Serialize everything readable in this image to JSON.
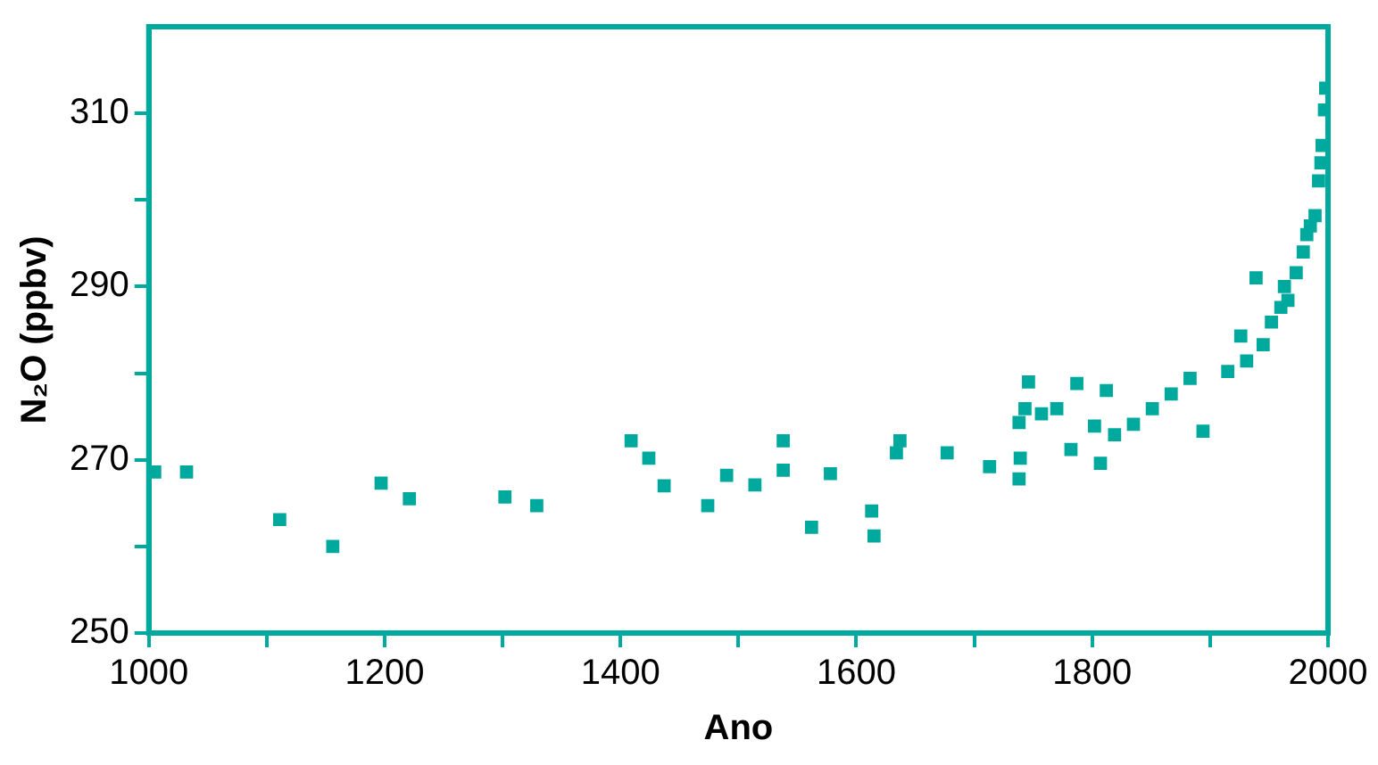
{
  "chart_data": {
    "type": "scatter",
    "xlabel": "Ano",
    "ylabel": "N₂O (ppbv)",
    "marker": "square",
    "grid": false,
    "legend": false,
    "xlim": [
      1000,
      2000
    ],
    "ylim": [
      250,
      320
    ],
    "xticks": [
      1000,
      {
        "value": 1100,
        "label": null
      },
      1200,
      {
        "value": 1300,
        "label": null
      },
      1400,
      {
        "value": 1500,
        "label": null
      },
      1600,
      {
        "value": 1700,
        "label": null
      },
      1800,
      {
        "value": 1900,
        "label": null
      },
      2000
    ],
    "yticks": [
      250,
      {
        "value": 260,
        "label": null
      },
      270,
      {
        "value": 280,
        "label": null
      },
      290,
      {
        "value": 300,
        "label": null
      },
      310
    ],
    "series": [
      {
        "color": "#00a99d",
        "x": [
          1005,
          1032,
          1111,
          1156,
          1197,
          1221,
          1302,
          1329,
          1409,
          1424,
          1437,
          1474,
          1490,
          1514,
          1538,
          1538,
          1562,
          1578,
          1613,
          1615,
          1634,
          1637,
          1677,
          1713,
          1738,
          1739,
          1738,
          1743,
          1746,
          1757,
          1770,
          1782,
          1787,
          1802,
          1807,
          1812,
          1819,
          1835,
          1851,
          1867,
          1883,
          1894,
          1915,
          1926,
          1931,
          1939,
          1945,
          1952,
          1960,
          1963,
          1966,
          1973,
          1979,
          1982,
          1985,
          1989,
          1992,
          1994,
          1995,
          1997,
          1998
        ],
        "values": [
          268.6,
          268.6,
          263.1,
          260,
          267.3,
          265.5,
          265.7,
          264.7,
          272.2,
          270.2,
          267,
          264.7,
          268.2,
          267.1,
          268.8,
          272.2,
          262.2,
          268.4,
          264.1,
          261.2,
          270.8,
          272.2,
          270.8,
          269.2,
          267.8,
          270.2,
          274.3,
          275.9,
          279,
          275.3,
          275.9,
          271.2,
          278.8,
          273.9,
          269.6,
          278,
          272.9,
          274.1,
          275.9,
          277.6,
          279.4,
          273.3,
          280.2,
          284.3,
          281.4,
          291,
          283.3,
          285.9,
          287.6,
          290,
          288.4,
          291.6,
          294,
          296,
          297,
          298.2,
          302.2,
          304.3,
          306.3,
          310.4,
          312.9
        ]
      }
    ]
  }
}
